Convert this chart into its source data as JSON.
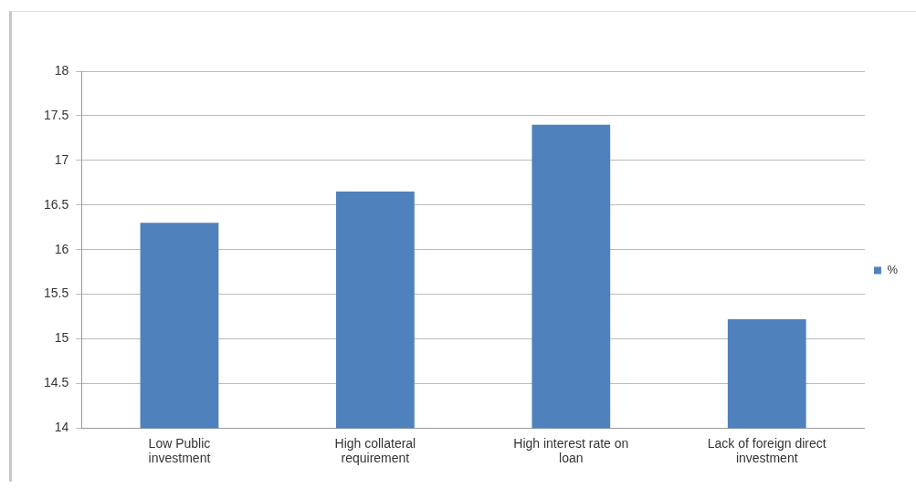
{
  "chart_data": {
    "type": "bar",
    "categories": [
      [
        "Low Public",
        "investment"
      ],
      [
        "High collateral",
        "requirement"
      ],
      [
        "High interest rate on",
        "loan"
      ],
      [
        "Lack of foreign direct",
        "investment"
      ]
    ],
    "series": [
      {
        "name": "%",
        "color": "#4f81bd",
        "values": [
          16.3,
          16.65,
          17.4,
          15.22
        ]
      }
    ],
    "ylim": [
      14,
      18
    ],
    "yticks": [
      14,
      14.5,
      15,
      15.5,
      16,
      16.5,
      17,
      17.5,
      18
    ],
    "grid": "y",
    "legend": "right"
  }
}
